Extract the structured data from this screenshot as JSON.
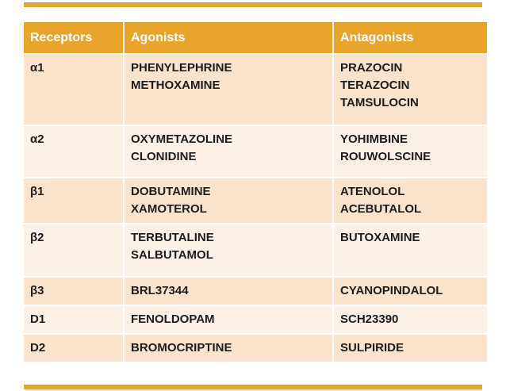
{
  "slide": {
    "accent_color": "#e9a42c",
    "band_dark": "#fae3cc",
    "band_light": "#fdf1e6",
    "background": "#ffffff"
  },
  "table": {
    "columns": {
      "receptors": "Receptors",
      "agonists": "Agonists",
      "antagonists": "Antagonists"
    },
    "rows": [
      {
        "receptor": "α1",
        "agonists": [
          "PHENYLEPHRINE",
          "METHOXAMINE"
        ],
        "antagonists": [
          "PRAZOCIN",
          "TERAZOCIN",
          "TAMSULOCIN"
        ]
      },
      {
        "receptor": "α2",
        "agonists": [
          "OXYMETAZOLINE",
          "CLONIDINE"
        ],
        "antagonists": [
          "YOHIMBINE",
          "ROUWOLSCINE"
        ]
      },
      {
        "receptor": "β1",
        "agonists": [
          "DOBUTAMINE",
          "XAMOTEROL"
        ],
        "antagonists": [
          "ATENOLOL",
          "ACEBUTALOL"
        ]
      },
      {
        "receptor": "β2",
        "agonists": [
          "TERBUTALINE",
          "SALBUTAMOL"
        ],
        "antagonists": [
          "BUTOXAMINE"
        ]
      },
      {
        "receptor": "β3",
        "agonists": [
          "BRL37344"
        ],
        "antagonists": [
          "CYANOPINDALOL"
        ]
      },
      {
        "receptor": "D1",
        "agonists": [
          "FENOLDOPAM"
        ],
        "antagonists": [
          "SCH23390"
        ]
      },
      {
        "receptor": "D2",
        "agonists": [
          "BROMOCRIPTINE"
        ],
        "antagonists": [
          "SULPIRIDE"
        ]
      }
    ]
  }
}
